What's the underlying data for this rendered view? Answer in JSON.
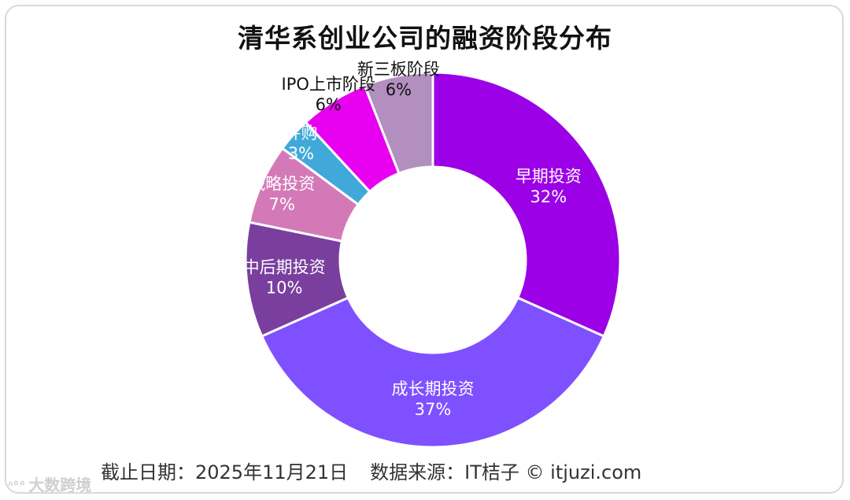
{
  "chart_data": {
    "type": "pie",
    "title": "清华系创业公司的融资阶段分布",
    "categories": [
      "早期投资",
      "成长期投资",
      "中后期投资",
      "战略投资",
      "并购",
      "IPO上市阶段",
      "新三板阶段"
    ],
    "values": [
      32,
      37,
      10,
      7,
      3,
      6,
      6
    ],
    "value_labels": [
      "32%",
      "37%",
      "10%",
      "7%",
      "3%",
      "6%",
      "6%"
    ],
    "colors": [
      "#9b00e6",
      "#7f50ff",
      "#7a3f9e",
      "#d479b8",
      "#41a9d9",
      "#e800f0",
      "#b38fc0"
    ],
    "donut": true
  },
  "footer": {
    "date": "截止日期：2025年11月21日",
    "source": "数据来源：IT桔子 © itjuzi.com"
  },
  "watermark": {
    "text": "大数跨境"
  }
}
